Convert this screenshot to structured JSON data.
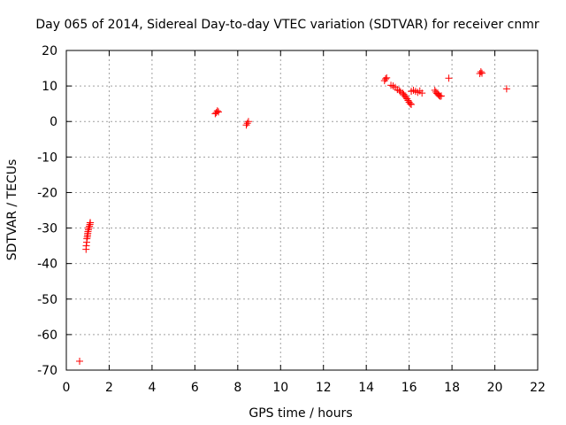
{
  "chart_data": {
    "type": "scatter",
    "title": "Day 065 of 2014, Sidereal Day-to-day VTEC variation (SDTVAR) for receiver cnmr",
    "xlabel": "GPS time / hours",
    "ylabel": "SDTVAR / TECUs",
    "xlim": [
      0,
      22
    ],
    "ylim": [
      -70,
      20
    ],
    "xticks": [
      0,
      2,
      4,
      6,
      8,
      10,
      12,
      14,
      16,
      18,
      20,
      22
    ],
    "yticks": [
      -70,
      -60,
      -50,
      -40,
      -30,
      -20,
      -10,
      0,
      10,
      20
    ],
    "grid": true,
    "series": [
      {
        "name": "SDTVAR",
        "color": "#ff0000",
        "marker": "plus",
        "x": [
          0.62,
          0.92,
          0.93,
          0.95,
          0.96,
          0.98,
          0.99,
          1.0,
          1.01,
          1.03,
          1.04,
          1.05,
          1.07,
          1.08,
          1.1,
          1.11,
          1.12,
          6.95,
          7.0,
          7.05,
          7.1,
          8.4,
          8.45,
          8.5,
          14.85,
          14.9,
          14.95,
          15.15,
          15.25,
          15.35,
          15.45,
          15.55,
          15.6,
          15.7,
          15.75,
          15.8,
          15.85,
          15.9,
          15.95,
          16.0,
          16.05,
          16.1,
          16.1,
          16.2,
          16.3,
          16.4,
          16.5,
          16.6,
          17.2,
          17.25,
          17.3,
          17.35,
          17.4,
          17.45,
          17.5,
          17.85,
          19.3,
          19.35,
          19.4,
          20.55
        ],
        "y": [
          -67.5,
          -36,
          -35,
          -34,
          -33,
          -32.5,
          -32,
          -31.5,
          -31,
          -30.5,
          -30,
          -30,
          -29.5,
          -29.5,
          -29,
          -28.5,
          -28.5,
          2.2,
          2.5,
          3.0,
          2.7,
          -1.0,
          -0.5,
          0,
          11.5,
          12.0,
          12.3,
          10.2,
          10.0,
          9.6,
          9.0,
          8.7,
          8.3,
          8.0,
          7.6,
          7.2,
          6.8,
          6.4,
          5.9,
          5.4,
          5.0,
          4.8,
          8.5,
          8.8,
          8.5,
          8.2,
          8.6,
          8.0,
          8.8,
          8.3,
          7.9,
          7.6,
          7.3,
          7.1,
          7.2,
          12.2,
          13.5,
          14.0,
          13.6,
          9.2
        ]
      }
    ]
  }
}
